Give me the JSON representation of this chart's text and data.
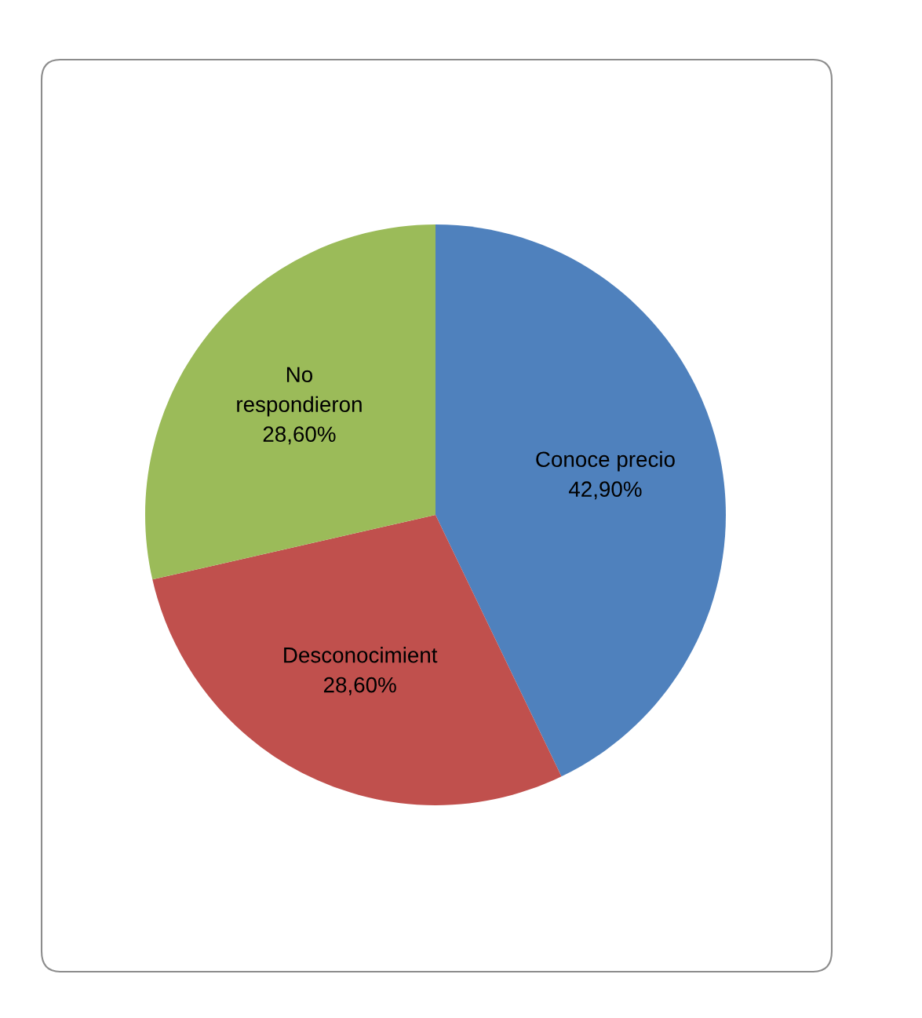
{
  "chart_data": {
    "type": "pie",
    "categories": [
      "Conoce precio",
      "Desconocimient",
      "No respondieron"
    ],
    "values": [
      42.9,
      28.6,
      28.6
    ],
    "value_labels": [
      "42,90%",
      "28,60%",
      "28,60%"
    ],
    "colors": [
      "#4f81bd",
      "#c0504d",
      "#9bbb59"
    ]
  }
}
